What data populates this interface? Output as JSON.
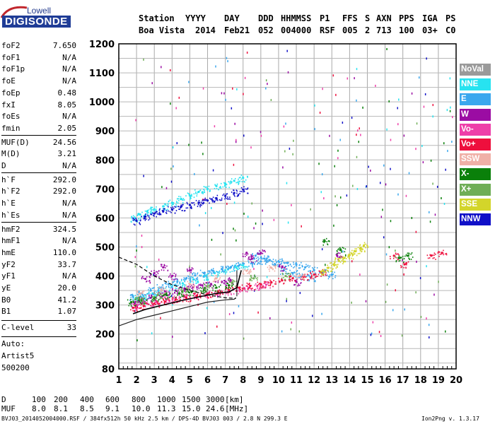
{
  "logo": {
    "top": "Lowell",
    "bottom": "DIGISONDE"
  },
  "header": {
    "row1": [
      "Station",
      "YYYY",
      "DAY",
      "DDD",
      "HHMMSS",
      "P1",
      "FFS",
      "S",
      "AXN",
      "PPS",
      "IGA",
      "PS"
    ],
    "row2": [
      "Boa Vista",
      "2014",
      "Feb21",
      "052",
      "004000",
      "RSF",
      "005",
      "2",
      "713",
      "100",
      "03+",
      "C0"
    ]
  },
  "params": [
    {
      "name": "foF2",
      "value": "7.650"
    },
    {
      "name": "foF1",
      "value": "N/A"
    },
    {
      "name": "foF1p",
      "value": "N/A"
    },
    {
      "name": "foE",
      "value": "N/A"
    },
    {
      "name": "foEp",
      "value": "0.48"
    },
    {
      "name": "fxI",
      "value": "8.05"
    },
    {
      "name": "foEs",
      "value": "N/A"
    },
    {
      "name": "fmin",
      "value": "2.05"
    },
    {
      "name": "MUF(D)",
      "value": "24.56"
    },
    {
      "name": "M(D)",
      "value": "3.21"
    },
    {
      "name": "D",
      "value": "N/A"
    },
    {
      "name": "h`F",
      "value": "292.0"
    },
    {
      "name": "h`F2",
      "value": "292.0"
    },
    {
      "name": "h`E",
      "value": "N/A"
    },
    {
      "name": "h`Es",
      "value": "N/A"
    },
    {
      "name": "hmF2",
      "value": "324.5"
    },
    {
      "name": "hmF1",
      "value": "N/A"
    },
    {
      "name": "hmE",
      "value": "110.0"
    },
    {
      "name": "yF2",
      "value": "33.7"
    },
    {
      "name": "yF1",
      "value": "N/A"
    },
    {
      "name": "yE",
      "value": "20.0"
    },
    {
      "name": "B0",
      "value": "41.2"
    },
    {
      "name": "B1",
      "value": "1.07"
    }
  ],
  "clevel": {
    "name": "C-level",
    "value": "33"
  },
  "auto": [
    "Auto:",
    "Artist5",
    "500200"
  ],
  "legend": [
    {
      "label": "NoVal",
      "color": "#9a9a9a"
    },
    {
      "label": "NNE",
      "color": "#27e3f0"
    },
    {
      "label": "E",
      "color": "#3aa7ee"
    },
    {
      "label": "W",
      "color": "#9b0ca3"
    },
    {
      "label": "Vo-",
      "color": "#ee3fa9"
    },
    {
      "label": "Vo+",
      "color": "#ee0f3d"
    },
    {
      "label": "SSW",
      "color": "#f0b0a7"
    },
    {
      "label": "X-",
      "color": "#0a800a"
    },
    {
      "label": "X+",
      "color": "#6fae56"
    },
    {
      "label": "SSE",
      "color": "#d3d52a"
    },
    {
      "label": "NNW",
      "color": "#1010c8"
    }
  ],
  "table": {
    "d_label": "D",
    "d_values": [
      "100",
      "200",
      "400",
      "600",
      "800",
      "1000",
      "1500",
      "3000",
      "[km]"
    ],
    "muf_label": "MUF",
    "muf_values": [
      "8.0",
      "8.1",
      "8.5",
      "9.1",
      "10.0",
      "11.3",
      "15.0",
      "24.6",
      "[MHz]"
    ]
  },
  "footer": {
    "left": "BVJ03_2014052004000.RSF / 384fx512h 50 kHz 2.5 km / DPS-4D BVJ03 003 / 2.8 N 299.3 E",
    "right": "Ion2Png v. 1.3.17"
  },
  "chart_data": {
    "type": "scatter",
    "title": "",
    "xlabel": "",
    "ylabel": "",
    "xlim": [
      1,
      20
    ],
    "ylim": [
      80,
      1200
    ],
    "x_ticks": [
      "1",
      "2",
      "3",
      "4",
      "5",
      "6",
      "7",
      "8",
      "9",
      "10",
      "11",
      "12",
      "13",
      "14",
      "15",
      "16",
      "17",
      "18",
      "19",
      "20"
    ],
    "y_ticks": [
      "80",
      "200",
      "300",
      "400",
      "500",
      "600",
      "700",
      "800",
      "900",
      "1000",
      "1100",
      "1200"
    ],
    "grid": true,
    "legend_position": "right",
    "series": [
      {
        "name": "NNE",
        "points": [
          [
            1.9,
            600
          ],
          [
            2.2,
            612
          ],
          [
            2.6,
            622
          ],
          [
            3.0,
            630
          ],
          [
            3.5,
            640
          ],
          [
            4.0,
            652
          ],
          [
            4.5,
            665
          ],
          [
            5.0,
            677
          ],
          [
            5.5,
            690
          ],
          [
            6.0,
            700
          ],
          [
            6.5,
            710
          ],
          [
            7.0,
            718
          ],
          [
            7.5,
            728
          ],
          [
            8.0,
            738
          ],
          [
            2.0,
            325
          ],
          [
            2.4,
            330
          ],
          [
            2.9,
            340
          ],
          [
            3.4,
            352
          ],
          [
            4.0,
            362
          ],
          [
            4.6,
            375
          ],
          [
            5.2,
            388
          ],
          [
            5.8,
            400
          ],
          [
            6.4,
            410
          ],
          [
            7.0,
            420
          ],
          [
            7.6,
            430
          ],
          [
            8.0,
            437
          ]
        ]
      },
      {
        "name": "E",
        "points": [
          [
            1.8,
            330
          ],
          [
            2.3,
            340
          ],
          [
            2.8,
            350
          ],
          [
            3.3,
            360
          ],
          [
            3.8,
            372
          ],
          [
            4.3,
            382
          ],
          [
            4.8,
            392
          ],
          [
            5.3,
            402
          ],
          [
            5.8,
            410
          ],
          [
            6.3,
            418
          ],
          [
            6.8,
            424
          ],
          [
            7.3,
            430
          ],
          [
            7.8,
            438
          ],
          [
            8.5,
            445
          ],
          [
            9.0,
            450
          ],
          [
            9.5,
            455
          ],
          [
            10.0,
            450
          ],
          [
            10.5,
            445
          ],
          [
            11.0,
            440
          ],
          [
            11.5,
            430
          ],
          [
            12.0,
            420
          ],
          [
            12.5,
            412
          ],
          [
            13.0,
            405
          ],
          [
            8.7,
            470
          ],
          [
            9.2,
            460
          ],
          [
            9.8,
            440
          ],
          [
            10.3,
            420
          ],
          [
            10.8,
            410
          ],
          [
            11.2,
            400
          ],
          [
            11.8,
            395
          ]
        ]
      },
      {
        "name": "W",
        "points": [
          [
            1.9,
            305
          ],
          [
            2.3,
            315
          ],
          [
            2.8,
            325
          ],
          [
            3.2,
            335
          ],
          [
            3.6,
            345
          ],
          [
            4.2,
            350
          ],
          [
            4.7,
            357
          ],
          [
            5.2,
            362
          ],
          [
            5.7,
            368
          ],
          [
            6.2,
            372
          ],
          [
            6.8,
            380
          ],
          [
            7.3,
            385
          ],
          [
            2.5,
            390
          ],
          [
            3.0,
            410
          ],
          [
            3.5,
            430
          ],
          [
            4.0,
            400
          ],
          [
            5.0,
            420
          ],
          [
            8.2,
            480
          ],
          [
            8.5,
            460
          ],
          [
            9.0,
            480
          ],
          [
            10.2,
            430
          ],
          [
            11.0,
            380
          ],
          [
            13.3,
            470
          ]
        ]
      },
      {
        "name": "Vo-",
        "points": [
          [
            2.0,
            300
          ],
          [
            2.6,
            305
          ],
          [
            3.1,
            310
          ],
          [
            3.7,
            318
          ],
          [
            4.2,
            322
          ],
          [
            4.8,
            328
          ],
          [
            5.4,
            332
          ],
          [
            6.0,
            338
          ],
          [
            6.6,
            343
          ],
          [
            7.2,
            348
          ],
          [
            7.8,
            352
          ],
          [
            8.3,
            358
          ],
          [
            8.8,
            365
          ],
          [
            9.3,
            370
          ]
        ]
      },
      {
        "name": "Vo+",
        "points": [
          [
            1.8,
            290
          ],
          [
            2.4,
            297
          ],
          [
            3.0,
            305
          ],
          [
            3.6,
            312
          ],
          [
            4.2,
            318
          ],
          [
            4.8,
            325
          ],
          [
            5.4,
            332
          ],
          [
            6.0,
            338
          ],
          [
            6.6,
            345
          ],
          [
            7.2,
            352
          ],
          [
            7.8,
            360
          ],
          [
            8.4,
            366
          ],
          [
            9.0,
            372
          ],
          [
            9.6,
            378
          ],
          [
            10.2,
            385
          ],
          [
            10.8,
            392
          ],
          [
            11.4,
            398
          ],
          [
            12.0,
            405
          ],
          [
            12.4,
            412
          ],
          [
            16.5,
            470
          ],
          [
            17.1,
            440
          ],
          [
            18.6,
            470
          ],
          [
            19.2,
            480
          ]
        ]
      },
      {
        "name": "SSW",
        "points": [
          [
            2.2,
            340
          ],
          [
            3.4,
            352
          ],
          [
            5.0,
            372
          ],
          [
            6.5,
            392
          ],
          [
            8.2,
            418
          ],
          [
            9.6,
            428
          ],
          [
            11.2,
            402
          ]
        ]
      },
      {
        "name": "X-",
        "points": [
          [
            1.7,
            310
          ],
          [
            2.3,
            318
          ],
          [
            3.0,
            326
          ],
          [
            3.7,
            334
          ],
          [
            4.4,
            340
          ],
          [
            5.1,
            346
          ],
          [
            5.8,
            352
          ],
          [
            6.5,
            360
          ],
          [
            7.2,
            368
          ],
          [
            12.6,
            520
          ],
          [
            13.5,
            490
          ],
          [
            16.8,
            462
          ],
          [
            17.3,
            470
          ]
        ]
      },
      {
        "name": "X+",
        "points": [
          [
            2.1,
            322
          ],
          [
            3.2,
            335
          ],
          [
            4.6,
            350
          ],
          [
            6.0,
            365
          ],
          [
            7.4,
            378
          ],
          [
            8.6,
            392
          ],
          [
            10.4,
            400
          ]
        ]
      },
      {
        "name": "SSE",
        "points": [
          [
            12.5,
            418
          ],
          [
            12.8,
            428
          ],
          [
            13.1,
            440
          ],
          [
            13.4,
            452
          ],
          [
            13.7,
            462
          ],
          [
            14.0,
            472
          ],
          [
            14.3,
            485
          ],
          [
            14.6,
            495
          ],
          [
            14.8,
            505
          ]
        ]
      },
      {
        "name": "NNW",
        "points": [
          [
            2.0,
            590
          ],
          [
            2.5,
            605
          ],
          [
            3.0,
            615
          ],
          [
            3.5,
            622
          ],
          [
            4.0,
            630
          ],
          [
            4.5,
            638
          ],
          [
            5.0,
            645
          ],
          [
            5.5,
            652
          ],
          [
            6.0,
            660
          ],
          [
            6.5,
            668
          ],
          [
            7.0,
            676
          ],
          [
            7.5,
            686
          ],
          [
            8.0,
            698
          ]
        ]
      }
    ],
    "noise_scatter": "sparse",
    "traces": [
      {
        "name": "F2 ionogram trace",
        "points": [
          [
            1.8,
            270
          ],
          [
            2.5,
            285
          ],
          [
            3.5,
            300
          ],
          [
            4.5,
            315
          ],
          [
            5.5,
            328
          ],
          [
            6.5,
            340
          ],
          [
            7.2,
            345
          ],
          [
            7.65,
            360
          ],
          [
            7.9,
            420
          ]
        ]
      },
      {
        "name": "Profile (solid)",
        "points": [
          [
            1.0,
            228
          ],
          [
            2.0,
            250
          ],
          [
            3.0,
            265
          ],
          [
            4.0,
            280
          ],
          [
            5.0,
            295
          ],
          [
            6.0,
            310
          ],
          [
            7.0,
            318
          ],
          [
            7.5,
            320
          ],
          [
            7.6,
            325
          ]
        ]
      },
      {
        "name": "Profile (dashed)",
        "points": [
          [
            1.0,
            465
          ],
          [
            2.0,
            440
          ],
          [
            3.0,
            400
          ],
          [
            4.0,
            370
          ],
          [
            5.0,
            350
          ],
          [
            6.0,
            335
          ],
          [
            7.0,
            325
          ],
          [
            7.6,
            323
          ]
        ]
      }
    ]
  }
}
